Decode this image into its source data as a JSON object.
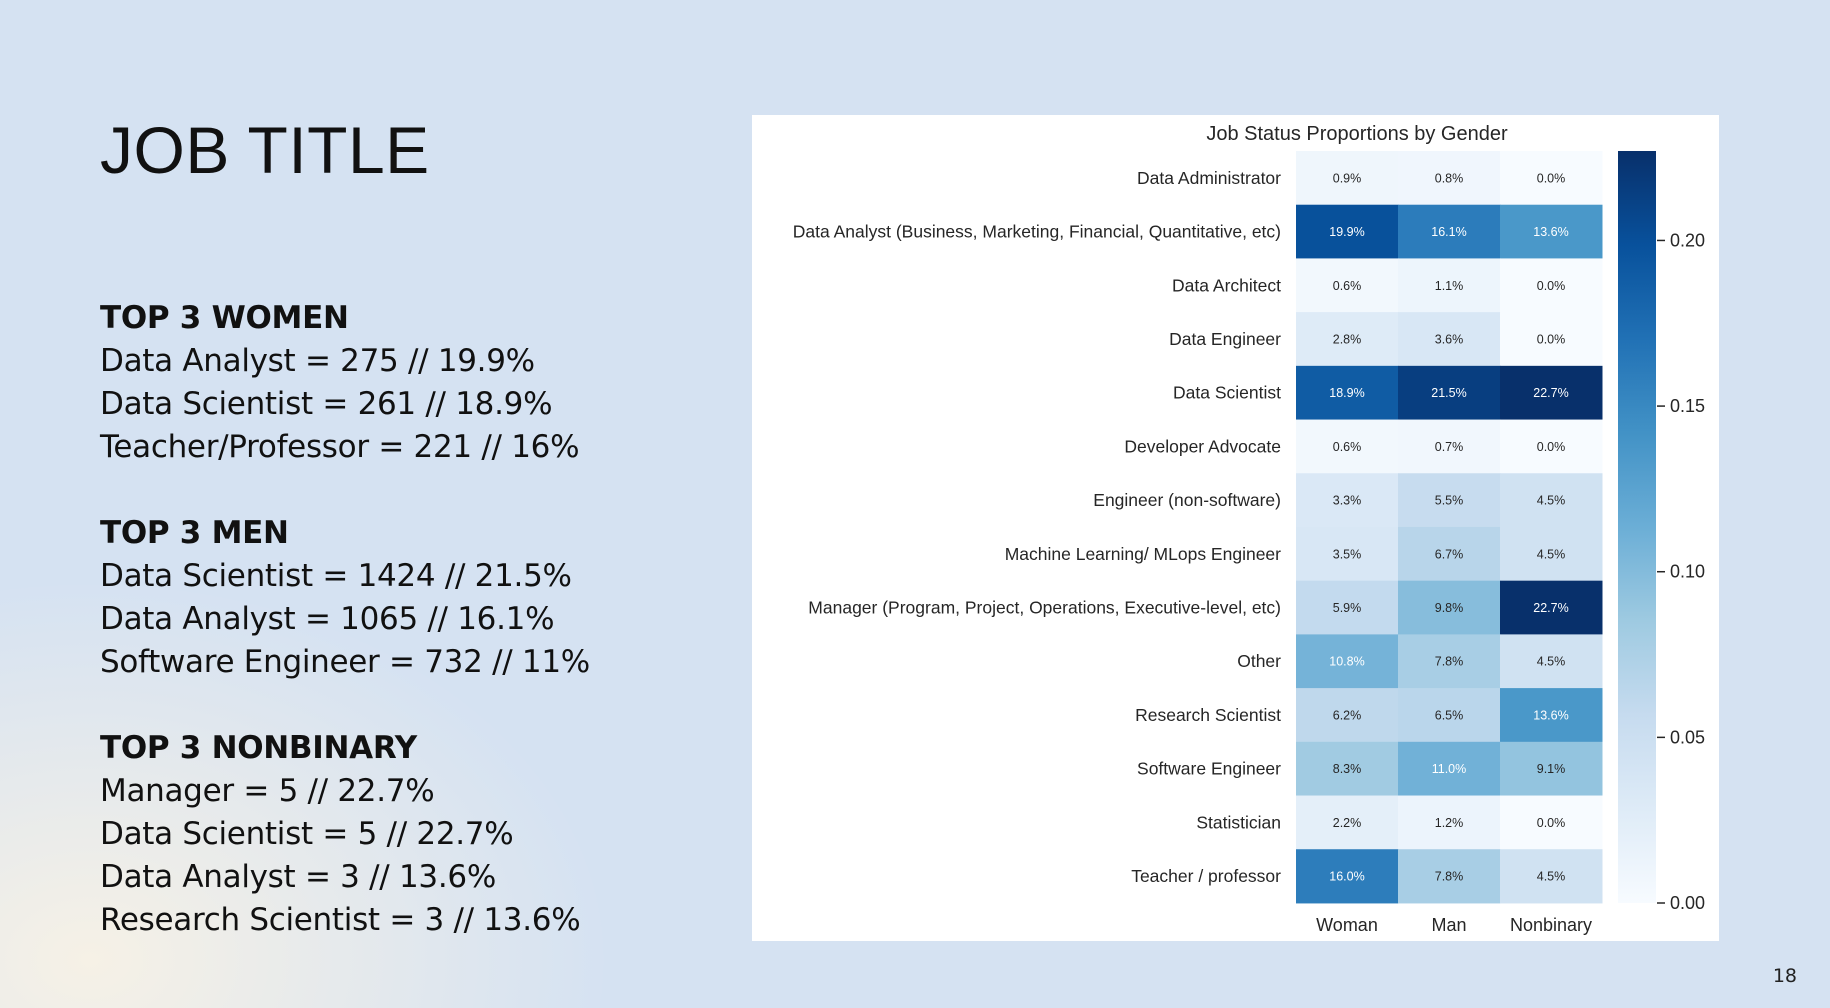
{
  "slide": {
    "title": "JOB TITLE",
    "page_number": "18"
  },
  "stats": [
    {
      "heading": "TOP 3 WOMEN",
      "lines": [
        "Data Analyst = 275 // 19.9%",
        "Data Scientist = 261 // 18.9%",
        "Teacher/Professor = 221 // 16%"
      ]
    },
    {
      "heading": "TOP 3 MEN",
      "lines": [
        "Data Scientist = 1424 // 21.5%",
        "Data Analyst = 1065 // 16.1%",
        "Software Engineer = 732 // 11%"
      ]
    },
    {
      "heading": "TOP 3 NONBINARY",
      "lines": [
        "Manager = 5 // 22.7%",
        "Data Scientist = 5 // 22.7%",
        "Data Analyst = 3 // 13.6%",
        "Research Scientist = 3 // 13.6%"
      ]
    }
  ],
  "chart_data": {
    "type": "heatmap",
    "title": "Job Status Proportions by Gender",
    "x_categories": [
      "Woman",
      "Man",
      "Nonbinary"
    ],
    "y_categories": [
      "Data Administrator",
      "Data Analyst (Business, Marketing, Financial, Quantitative, etc)",
      "Data Architect",
      "Data Engineer",
      "Data Scientist",
      "Developer Advocate",
      "Engineer (non-software)",
      "Machine Learning/ MLops Engineer",
      "Manager (Program, Project, Operations, Executive-level, etc)",
      "Other",
      "Research Scientist",
      "Software Engineer",
      "Statistician",
      "Teacher / professor"
    ],
    "values": [
      [
        0.009,
        0.008,
        0.0
      ],
      [
        0.199,
        0.161,
        0.136
      ],
      [
        0.006,
        0.011,
        0.0
      ],
      [
        0.028,
        0.036,
        0.0
      ],
      [
        0.189,
        0.215,
        0.227
      ],
      [
        0.006,
        0.007,
        0.0
      ],
      [
        0.033,
        0.055,
        0.045
      ],
      [
        0.035,
        0.067,
        0.045
      ],
      [
        0.059,
        0.098,
        0.227
      ],
      [
        0.108,
        0.078,
        0.045
      ],
      [
        0.062,
        0.065,
        0.136
      ],
      [
        0.083,
        0.11,
        0.091
      ],
      [
        0.022,
        0.012,
        0.0
      ],
      [
        0.16,
        0.078,
        0.045
      ]
    ],
    "cell_labels": [
      [
        "0.9%",
        "0.8%",
        "0.0%"
      ],
      [
        "19.9%",
        "16.1%",
        "13.6%"
      ],
      [
        "0.6%",
        "1.1%",
        "0.0%"
      ],
      [
        "2.8%",
        "3.6%",
        "0.0%"
      ],
      [
        "18.9%",
        "21.5%",
        "22.7%"
      ],
      [
        "0.6%",
        "0.7%",
        "0.0%"
      ],
      [
        "3.3%",
        "5.5%",
        "4.5%"
      ],
      [
        "3.5%",
        "6.7%",
        "4.5%"
      ],
      [
        "5.9%",
        "9.8%",
        "22.7%"
      ],
      [
        "10.8%",
        "7.8%",
        "4.5%"
      ],
      [
        "6.2%",
        "6.5%",
        "13.6%"
      ],
      [
        "8.3%",
        "11.0%",
        "9.1%"
      ],
      [
        "2.2%",
        "1.2%",
        "0.0%"
      ],
      [
        "16.0%",
        "7.8%",
        "4.5%"
      ]
    ],
    "colorbar": {
      "range": [
        0,
        0.227
      ],
      "ticks": [
        0.0,
        0.05,
        0.1,
        0.15,
        0.2
      ],
      "tick_labels": [
        "0.00",
        "0.05",
        "0.10",
        "0.15",
        "0.20"
      ],
      "colormap": "Blues"
    },
    "colors": {
      "low": "#f7fbff",
      "high": "#08306b"
    }
  }
}
